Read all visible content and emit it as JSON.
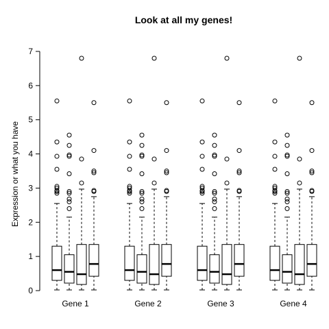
{
  "chart_data": {
    "type": "boxplot",
    "title": "Look at all my genes!",
    "xlabel": "",
    "ylabel": "Expression or what you have",
    "ylim": [
      0,
      7
    ],
    "yticks": [
      0,
      1,
      2,
      3,
      4,
      5,
      6,
      7
    ],
    "grid": false,
    "groups": [
      {
        "label": "Gene 1"
      },
      {
        "label": "Gene 2"
      },
      {
        "label": "Gene 3"
      },
      {
        "label": "Gene 4"
      }
    ],
    "boxes_per_group": [
      {
        "whisker_low": 0.02,
        "q1": 0.3,
        "median": 0.6,
        "q3": 1.3,
        "whisker_high": 2.55,
        "outliers": [
          2.85,
          2.9,
          2.93,
          3.0,
          3.05,
          3.55,
          3.93,
          4.35,
          5.55
        ]
      },
      {
        "whisker_low": 0.02,
        "q1": 0.22,
        "median": 0.55,
        "q3": 1.05,
        "whisker_high": 2.15,
        "outliers": [
          2.4,
          2.6,
          2.68,
          2.85,
          2.9,
          3.42,
          3.93,
          3.97,
          4.25,
          4.55
        ]
      },
      {
        "whisker_low": 0.02,
        "q1": 0.18,
        "median": 0.48,
        "q3": 1.35,
        "whisker_high": 2.97,
        "outliers": [
          3.15,
          3.85,
          6.8
        ]
      },
      {
        "whisker_low": 0.02,
        "q1": 0.42,
        "median": 0.78,
        "q3": 1.35,
        "whisker_high": 2.75,
        "outliers": [
          2.9,
          2.93,
          3.45,
          3.5,
          4.1,
          5.5
        ]
      }
    ]
  }
}
